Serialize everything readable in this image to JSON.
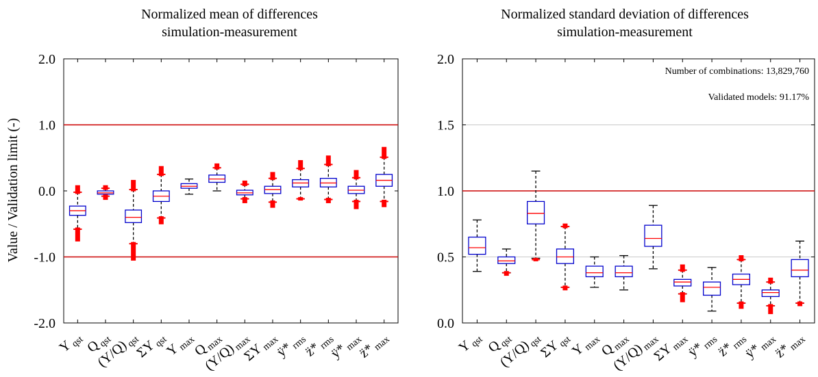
{
  "chart_data": [
    {
      "type": "box",
      "title": [
        "Normalized mean of differences",
        "simulation-measurement"
      ],
      "ylabel": "Value / Validation limit (-)",
      "ylim": [
        -2.0,
        2.0
      ],
      "ytick_labels": [
        "2.0",
        "1.0",
        "0.0",
        "-1.0",
        "-2.0"
      ],
      "ytick_values": [
        2.0,
        1.0,
        0.0,
        -1.0,
        -2.0
      ],
      "hlines": [
        1.0,
        -1.0
      ],
      "hline_color": "#cc0000",
      "box_color": "#0000cc",
      "median_color": "#ff0000",
      "outlier_color": "#ff0000",
      "grid": false,
      "categories": [
        {
          "main": "Y",
          "sub": "qst"
        },
        {
          "main": "Q",
          "sub": "qst"
        },
        {
          "main": "(Y/Q)",
          "sub": "qst"
        },
        {
          "main": "ΣY",
          "sub": "qst"
        },
        {
          "main": "Y",
          "sub": "max"
        },
        {
          "main": "Q",
          "sub": "max"
        },
        {
          "main": "(Y/Q)",
          "sub": "max"
        },
        {
          "main": "ΣY",
          "sub": "max"
        },
        {
          "main": "ÿ*",
          "sub": "rms"
        },
        {
          "main": "z̈*",
          "sub": "rms"
        },
        {
          "main": "ÿ*",
          "sub": "max"
        },
        {
          "main": "z̈*",
          "sub": "max"
        }
      ],
      "boxes": [
        {
          "wlo": -0.58,
          "q1": -0.37,
          "med": -0.3,
          "q3": -0.23,
          "whi": -0.02,
          "out_lo": [
            -0.58,
            -0.74
          ],
          "out_hi": [
            -0.02,
            0.06
          ]
        },
        {
          "wlo": -0.08,
          "q1": -0.05,
          "med": -0.03,
          "q3": 0.0,
          "whi": 0.04,
          "out_lo": [
            -0.08,
            -0.11
          ],
          "out_hi": [
            0.04,
            0.06
          ]
        },
        {
          "wlo": -0.8,
          "q1": -0.48,
          "med": -0.4,
          "q3": -0.29,
          "whi": 0.02,
          "out_lo": [
            -0.8,
            -1.03
          ],
          "out_hi": [
            0.02,
            0.14
          ]
        },
        {
          "wlo": -0.41,
          "q1": -0.16,
          "med": -0.08,
          "q3": 0.0,
          "whi": 0.25,
          "out_lo": [
            -0.41,
            -0.48
          ],
          "out_hi": [
            0.25,
            0.35
          ]
        },
        {
          "wlo": -0.05,
          "q1": 0.04,
          "med": 0.07,
          "q3": 0.11,
          "whi": 0.18,
          "out_lo": [],
          "out_hi": []
        },
        {
          "wlo": 0.0,
          "q1": 0.13,
          "med": 0.18,
          "q3": 0.24,
          "whi": 0.35,
          "out_lo": [],
          "out_hi": [
            0.35,
            0.39
          ]
        },
        {
          "wlo": -0.12,
          "q1": -0.06,
          "med": -0.03,
          "q3": 0.01,
          "whi": 0.1,
          "out_lo": [
            -0.12,
            -0.16
          ],
          "out_hi": [
            0.1,
            0.13
          ]
        },
        {
          "wlo": -0.17,
          "q1": -0.04,
          "med": 0.02,
          "q3": 0.07,
          "whi": 0.19,
          "out_lo": [
            -0.17,
            -0.23
          ],
          "out_hi": [
            0.19,
            0.26
          ]
        },
        {
          "wlo": -0.12,
          "q1": 0.06,
          "med": 0.12,
          "q3": 0.17,
          "whi": 0.34,
          "out_lo": [
            -0.12
          ],
          "out_hi": [
            0.34,
            0.44
          ]
        },
        {
          "wlo": -0.13,
          "q1": 0.06,
          "med": 0.12,
          "q3": 0.19,
          "whi": 0.4,
          "out_lo": [
            -0.13,
            -0.16
          ],
          "out_hi": [
            0.4,
            0.51
          ]
        },
        {
          "wlo": -0.16,
          "q1": -0.04,
          "med": 0.01,
          "q3": 0.07,
          "whi": 0.2,
          "out_lo": [
            -0.16,
            -0.25
          ],
          "out_hi": [
            0.2,
            0.29
          ]
        },
        {
          "wlo": -0.16,
          "q1": 0.07,
          "med": 0.16,
          "q3": 0.25,
          "whi": 0.51,
          "out_lo": [
            -0.16,
            -0.22
          ],
          "out_hi": [
            0.51,
            0.64
          ]
        }
      ]
    },
    {
      "type": "box",
      "title": [
        "Normalized standard deviation of differences",
        "simulation-measurement"
      ],
      "ylim": [
        0.0,
        2.0
      ],
      "ytick_labels": [
        "2.0",
        "1.5",
        "1.0",
        "0.5",
        "0.0"
      ],
      "ytick_values": [
        2.0,
        1.5,
        1.0,
        0.5,
        0.0
      ],
      "hlines": [
        1.0
      ],
      "hline_color": "#cc0000",
      "box_color": "#0000cc",
      "median_color": "#ff0000",
      "outlier_color": "#ff0000",
      "grid": true,
      "annotations": [
        "Number of combinations: 13,829,760",
        "Validated models: 91.17%"
      ],
      "categories": [
        {
          "main": "Y",
          "sub": "qst"
        },
        {
          "main": "Q",
          "sub": "qst"
        },
        {
          "main": "(Y/Q)",
          "sub": "qst"
        },
        {
          "main": "ΣY",
          "sub": "qst"
        },
        {
          "main": "Y",
          "sub": "max"
        },
        {
          "main": "Q",
          "sub": "max"
        },
        {
          "main": "(Y/Q)",
          "sub": "max"
        },
        {
          "main": "ΣY",
          "sub": "max"
        },
        {
          "main": "ÿ*",
          "sub": "rms"
        },
        {
          "main": "z̈*",
          "sub": "rms"
        },
        {
          "main": "ÿ*",
          "sub": "max"
        },
        {
          "main": "z̈*",
          "sub": "max"
        }
      ],
      "boxes": [
        {
          "wlo": 0.39,
          "q1": 0.52,
          "med": 0.57,
          "q3": 0.65,
          "whi": 0.78,
          "out_lo": [],
          "out_hi": []
        },
        {
          "wlo": 0.38,
          "q1": 0.45,
          "med": 0.47,
          "q3": 0.5,
          "whi": 0.56,
          "out_lo": [
            0.38,
            0.37
          ],
          "out_hi": []
        },
        {
          "wlo": 0.49,
          "q1": 0.75,
          "med": 0.83,
          "q3": 0.92,
          "whi": 1.15,
          "out_lo": [
            0.48
          ],
          "out_hi": []
        },
        {
          "wlo": 0.27,
          "q1": 0.45,
          "med": 0.5,
          "q3": 0.56,
          "whi": 0.73,
          "out_lo": [
            0.27,
            0.26
          ],
          "out_hi": [
            0.73,
            0.74
          ]
        },
        {
          "wlo": 0.27,
          "q1": 0.35,
          "med": 0.38,
          "q3": 0.43,
          "whi": 0.5,
          "out_lo": [],
          "out_hi": []
        },
        {
          "wlo": 0.25,
          "q1": 0.35,
          "med": 0.38,
          "q3": 0.43,
          "whi": 0.51,
          "out_lo": [],
          "out_hi": []
        },
        {
          "wlo": 0.41,
          "q1": 0.58,
          "med": 0.64,
          "q3": 0.74,
          "whi": 0.89,
          "out_lo": [],
          "out_hi": []
        },
        {
          "wlo": 0.22,
          "q1": 0.28,
          "med": 0.31,
          "q3": 0.33,
          "whi": 0.4,
          "out_lo": [
            0.22,
            0.17
          ],
          "out_hi": [
            0.4,
            0.43
          ]
        },
        {
          "wlo": 0.09,
          "q1": 0.21,
          "med": 0.27,
          "q3": 0.31,
          "whi": 0.42,
          "out_lo": [],
          "out_hi": []
        },
        {
          "wlo": 0.15,
          "q1": 0.29,
          "med": 0.33,
          "q3": 0.37,
          "whi": 0.48,
          "out_lo": [
            0.15,
            0.12
          ],
          "out_hi": [
            0.48,
            0.5
          ]
        },
        {
          "wlo": 0.13,
          "q1": 0.2,
          "med": 0.23,
          "q3": 0.25,
          "whi": 0.31,
          "out_lo": [
            0.13,
            0.08
          ],
          "out_hi": [
            0.31,
            0.33
          ]
        },
        {
          "wlo": 0.15,
          "q1": 0.35,
          "med": 0.4,
          "q3": 0.48,
          "whi": 0.62,
          "out_lo": [
            0.15,
            0.14
          ],
          "out_hi": []
        }
      ]
    }
  ]
}
